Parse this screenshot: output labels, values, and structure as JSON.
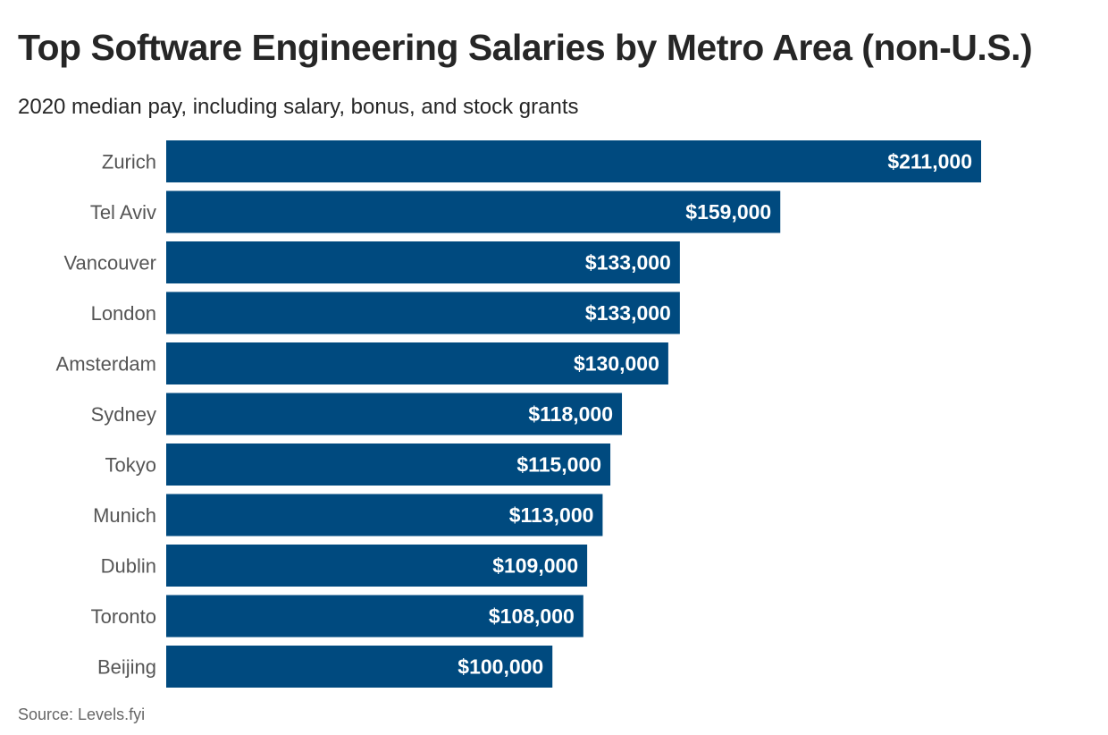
{
  "header": {
    "title": "Top Software Engineering Salaries by Metro Area (non-U.S.)",
    "subtitle": "2020 median pay, including salary, bonus, and stock grants"
  },
  "footer": {
    "source": "Source: Levels.fyi"
  },
  "colors": {
    "bar": "#004a7f",
    "label_text": "#555555",
    "value_text": "#ffffff"
  },
  "chart_data": {
    "type": "bar",
    "orientation": "horizontal",
    "title": "Top Software Engineering Salaries by Metro Area (non-U.S.)",
    "subtitle": "2020 median pay, including salary, bonus, and stock grants",
    "categories": [
      "Zurich",
      "Tel Aviv",
      "Vancouver",
      "London",
      "Amsterdam",
      "Sydney",
      "Tokyo",
      "Munich",
      "Dublin",
      "Toronto",
      "Beijing"
    ],
    "values": [
      211000,
      159000,
      133000,
      133000,
      130000,
      118000,
      115000,
      113000,
      109000,
      108000,
      100000
    ],
    "value_labels": [
      "$211,000",
      "$159,000",
      "$133,000",
      "$133,000",
      "$130,000",
      "$118,000",
      "$115,000",
      "$113,000",
      "$109,000",
      "$108,000",
      "$100,000"
    ],
    "grid": false,
    "legend": "none"
  }
}
